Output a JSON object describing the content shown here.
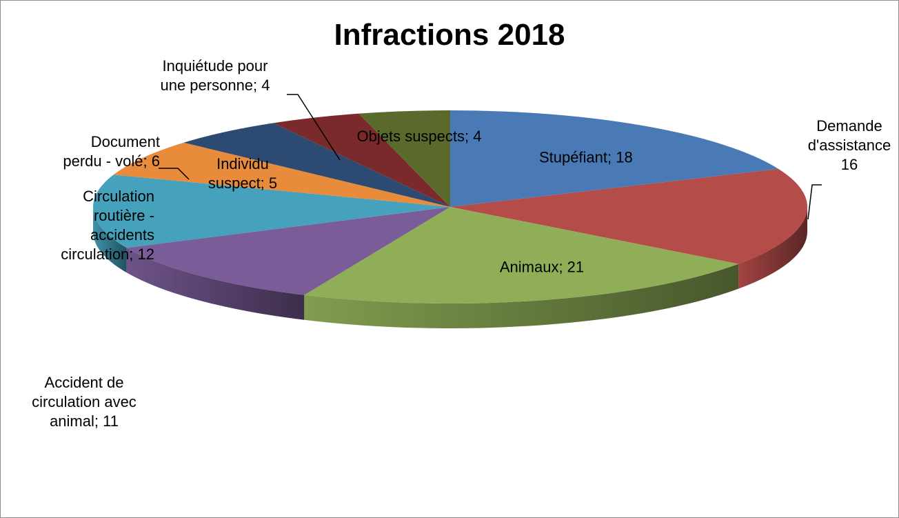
{
  "chart_data": {
    "type": "pie",
    "title": "Infractions 2018",
    "slices": [
      {
        "label": "Stupéfiant",
        "value": 18,
        "color": "#4a7ab6",
        "label_lines": [
          "Stupéfiant; 18"
        ]
      },
      {
        "label": "Demande d'assistance",
        "value": 16,
        "color": "#b44c4a",
        "label_lines": [
          "Demande",
          "d'assistance",
          "16"
        ]
      },
      {
        "label": "Animaux",
        "value": 21,
        "color": "#8fae57",
        "label_lines": [
          "Animaux; 21"
        ]
      },
      {
        "label": "Accident de circulation avec animal",
        "value": 11,
        "color": "#7a5c98",
        "label_lines": [
          "Accident de",
          "circulation avec",
          "animal; 11"
        ]
      },
      {
        "label": "Circulation routière - accidents circulation",
        "value": 12,
        "color": "#46a2bc",
        "label_lines": [
          "Circulation",
          "routière -",
          "accidents",
          "circulation; 12"
        ]
      },
      {
        "label": "Document perdu - volé",
        "value": 6,
        "color": "#e88c3c",
        "label_lines": [
          "Document",
          "perdu - volé; 6"
        ]
      },
      {
        "label": "Individu suspect",
        "value": 5,
        "color": "#2c4a72",
        "label_lines": [
          "Individu",
          "suspect; 5"
        ]
      },
      {
        "label": "Inquiétude pour une personne",
        "value": 4,
        "color": "#7a2a2a",
        "label_lines": [
          "Inquiétude pour",
          "une personne; 4"
        ]
      },
      {
        "label": "Objets suspects",
        "value": 4,
        "color": "#5a6a2c",
        "label_lines": [
          "Objets suspects; 4"
        ]
      }
    ],
    "legend": "none",
    "style": "3d"
  }
}
